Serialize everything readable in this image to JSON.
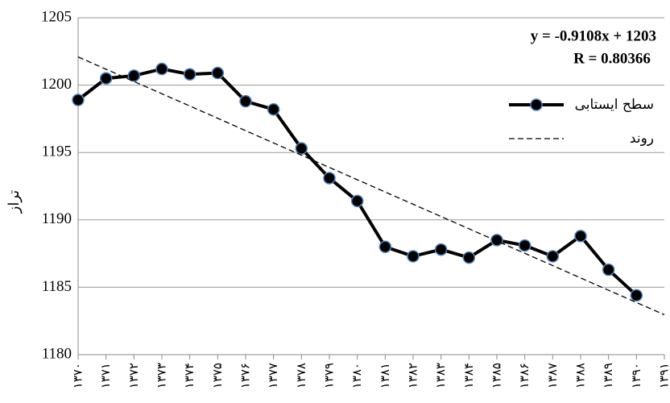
{
  "chart_data": {
    "type": "line",
    "y_label": "تراز",
    "annotations": [
      "y = -0.9108x + 1203",
      "R = 0.80366"
    ],
    "categories": [
      "۱۳۷۰",
      "۱۳۷۱",
      "۱۳۷۲",
      "۱۳۷۳",
      "۱۳۷۴",
      "۱۳۷۵",
      "۱۳۷۶",
      "۱۳۷۷",
      "۱۳۷۸",
      "۱۳۷۹",
      "۱۳۸۰",
      "۱۳۸۱",
      "۱۳۸۲",
      "۱۳۸۳",
      "۱۳۸۴",
      "۱۳۸۵",
      "۱۳۸۶",
      "۱۳۸۷",
      "۱۳۸۸",
      "۱۳۸۹",
      "۱۳۹۰",
      "۱۳۹۱"
    ],
    "series": [
      {
        "name": "سطح ایستابی",
        "color": "#000000",
        "marker_color": "#4f81bd",
        "style": "solid",
        "values": [
          1198.9,
          1200.5,
          1200.7,
          1201.2,
          1200.8,
          1200.9,
          1198.8,
          1198.2,
          1195.3,
          1193.1,
          1191.4,
          1188.0,
          1187.3,
          1187.8,
          1187.2,
          1188.5,
          1188.1,
          1187.3,
          1188.8,
          1186.3,
          1184.4,
          null
        ]
      },
      {
        "name": "روند",
        "color": "#000000",
        "style": "dashed",
        "values": [
          1202.09,
          1201.18,
          1200.27,
          1199.36,
          1198.45,
          1197.54,
          1196.62,
          1195.71,
          1194.8,
          1193.89,
          1192.98,
          1192.07,
          1191.16,
          1190.25,
          1189.34,
          1188.43,
          1187.52,
          1186.61,
          1185.69,
          1184.78,
          1183.87,
          1182.96
        ]
      }
    ],
    "ylim": [
      1180,
      1205
    ],
    "yticks": [
      1180,
      1185,
      1190,
      1195,
      1200,
      1205
    ],
    "grid": true,
    "legend": "upper-right"
  }
}
